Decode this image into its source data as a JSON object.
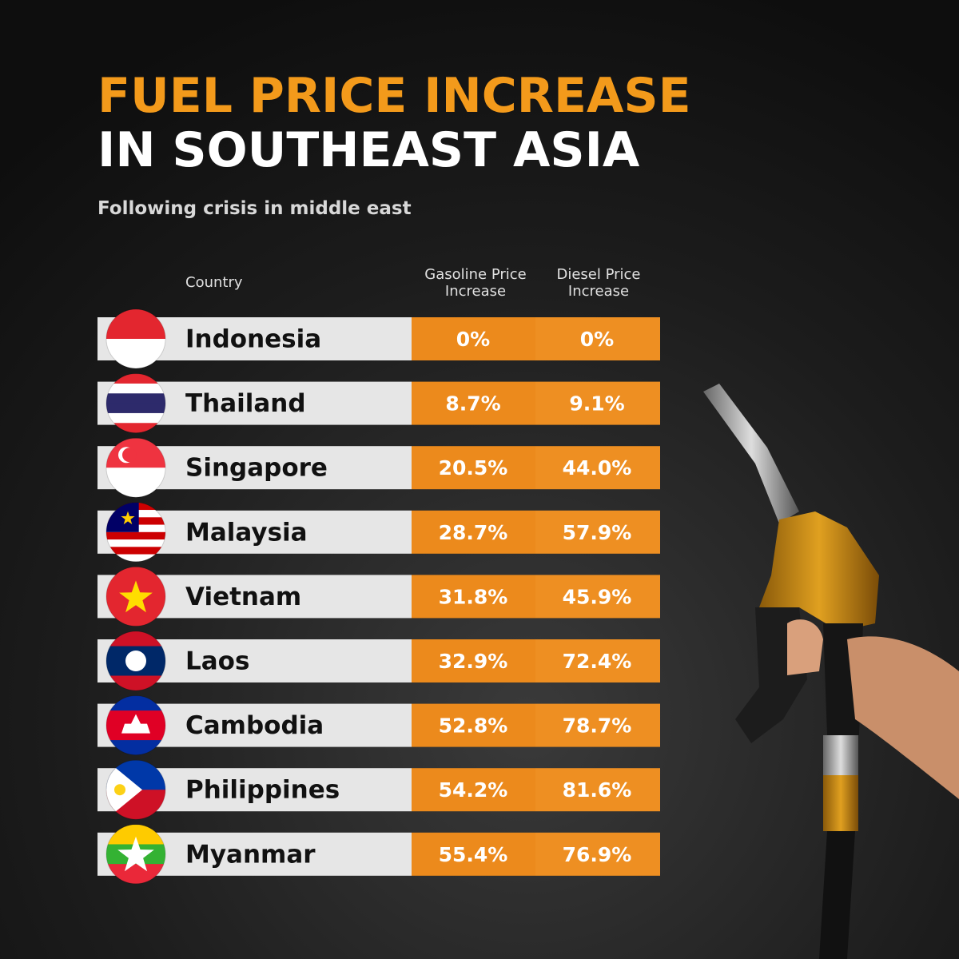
{
  "header": {
    "title": [
      "FUEL PRICE INCREASE",
      "IN SOUTHEAST ASIA"
    ],
    "subtitle": "Following crisis in middle east"
  },
  "table": {
    "columns": [
      [
        "Country"
      ],
      [
        "Gasoline Price",
        "Increase"
      ],
      [
        "Diesel Price",
        "Increase"
      ]
    ],
    "rows": [
      [
        "Indonesia",
        "0%",
        "0%"
      ],
      [
        "Thailand",
        "8.7%",
        "9.1%"
      ],
      [
        "Singapore",
        "20.5%",
        "44.0%"
      ],
      [
        "Malaysia",
        "28.7%",
        "57.9%"
      ],
      [
        "Vietnam",
        "31.8%",
        "45.9%"
      ],
      [
        "Laos",
        "32.9%",
        "72.4%"
      ],
      [
        "Cambodia",
        "52.8%",
        "78.7%"
      ],
      [
        "Philippines",
        "54.2%",
        "81.6%"
      ],
      [
        "Myanmar",
        "55.4%",
        "76.9%"
      ]
    ]
  }
}
